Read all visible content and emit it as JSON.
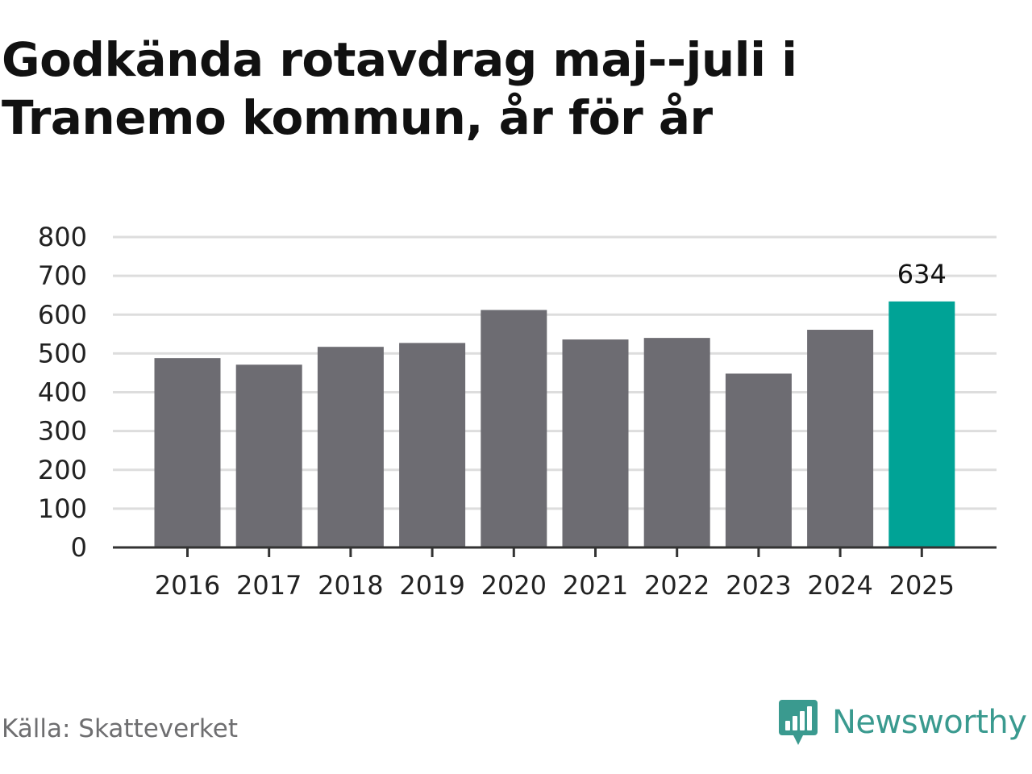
{
  "title": "Godkända rotavdrag maj--juli i Tranemo kommun, år för år",
  "source": "Källa: Skatteverket",
  "brand": {
    "name": "Newsworthy",
    "icon": "bar-chart-speech-bubble-icon",
    "color": "#3a9a8f"
  },
  "colors": {
    "bar": "#6d6c72",
    "highlight": "#00a396",
    "grid": "#dddddd",
    "axis": "#333333",
    "text": "#222222"
  },
  "chart_data": {
    "type": "bar",
    "title": "Godkända rotavdrag maj--juli i Tranemo kommun, år för år",
    "xlabel": "",
    "ylabel": "",
    "categories": [
      "2016",
      "2017",
      "2018",
      "2019",
      "2020",
      "2021",
      "2022",
      "2023",
      "2024",
      "2025"
    ],
    "values": [
      488,
      471,
      517,
      527,
      612,
      536,
      540,
      448,
      561,
      634
    ],
    "highlight_index": 9,
    "data_labels": [
      {
        "index": 9,
        "text": "634"
      }
    ],
    "ylim": [
      0,
      800
    ],
    "yticks": [
      0,
      100,
      200,
      300,
      400,
      500,
      600,
      700,
      800
    ],
    "grid": true,
    "legend": "none"
  }
}
